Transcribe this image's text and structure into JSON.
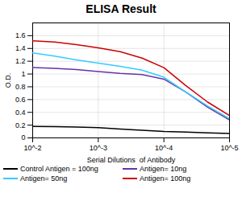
{
  "chart_data": {
    "type": "line",
    "title": "ELISA Result",
    "xlabel": "Serial Dilutions  of Antibody",
    "ylabel": "O.D.",
    "x": [
      0,
      0.333,
      0.667,
      1.0,
      1.333,
      1.667,
      2.0,
      2.333,
      2.667,
      3.0
    ],
    "xlim": [
      0,
      3
    ],
    "xticks": [
      {
        "value": 0,
        "label": "10^-2"
      },
      {
        "value": 1,
        "label": "10^-3"
      },
      {
        "value": 2,
        "label": "10^-4"
      },
      {
        "value": 3,
        "label": "10^-5"
      }
    ],
    "ylim": [
      0,
      1.8
    ],
    "yticks": [
      0,
      0.2,
      0.4,
      0.6,
      0.8,
      1,
      1.2,
      1.4,
      1.6
    ],
    "grid": true,
    "legend": "bottom",
    "series": [
      {
        "name": "Control Antigen = 100ng",
        "color": "#000000",
        "values": [
          0.18,
          0.175,
          0.17,
          0.16,
          0.14,
          0.12,
          0.1,
          0.09,
          0.08,
          0.07
        ]
      },
      {
        "name": "Antigen= 10ng",
        "color": "#6633AA",
        "values": [
          1.1,
          1.09,
          1.07,
          1.04,
          1.01,
          0.99,
          0.92,
          0.72,
          0.48,
          0.28
        ]
      },
      {
        "name": "Antigen= 50ng",
        "color": "#33CCFF",
        "values": [
          1.33,
          1.28,
          1.22,
          1.17,
          1.12,
          1.06,
          0.95,
          0.72,
          0.5,
          0.3
        ]
      },
      {
        "name": "Antigen= 100ng",
        "color": "#CC0000",
        "values": [
          1.52,
          1.5,
          1.46,
          1.41,
          1.35,
          1.25,
          1.1,
          0.82,
          0.56,
          0.35
        ]
      }
    ]
  }
}
